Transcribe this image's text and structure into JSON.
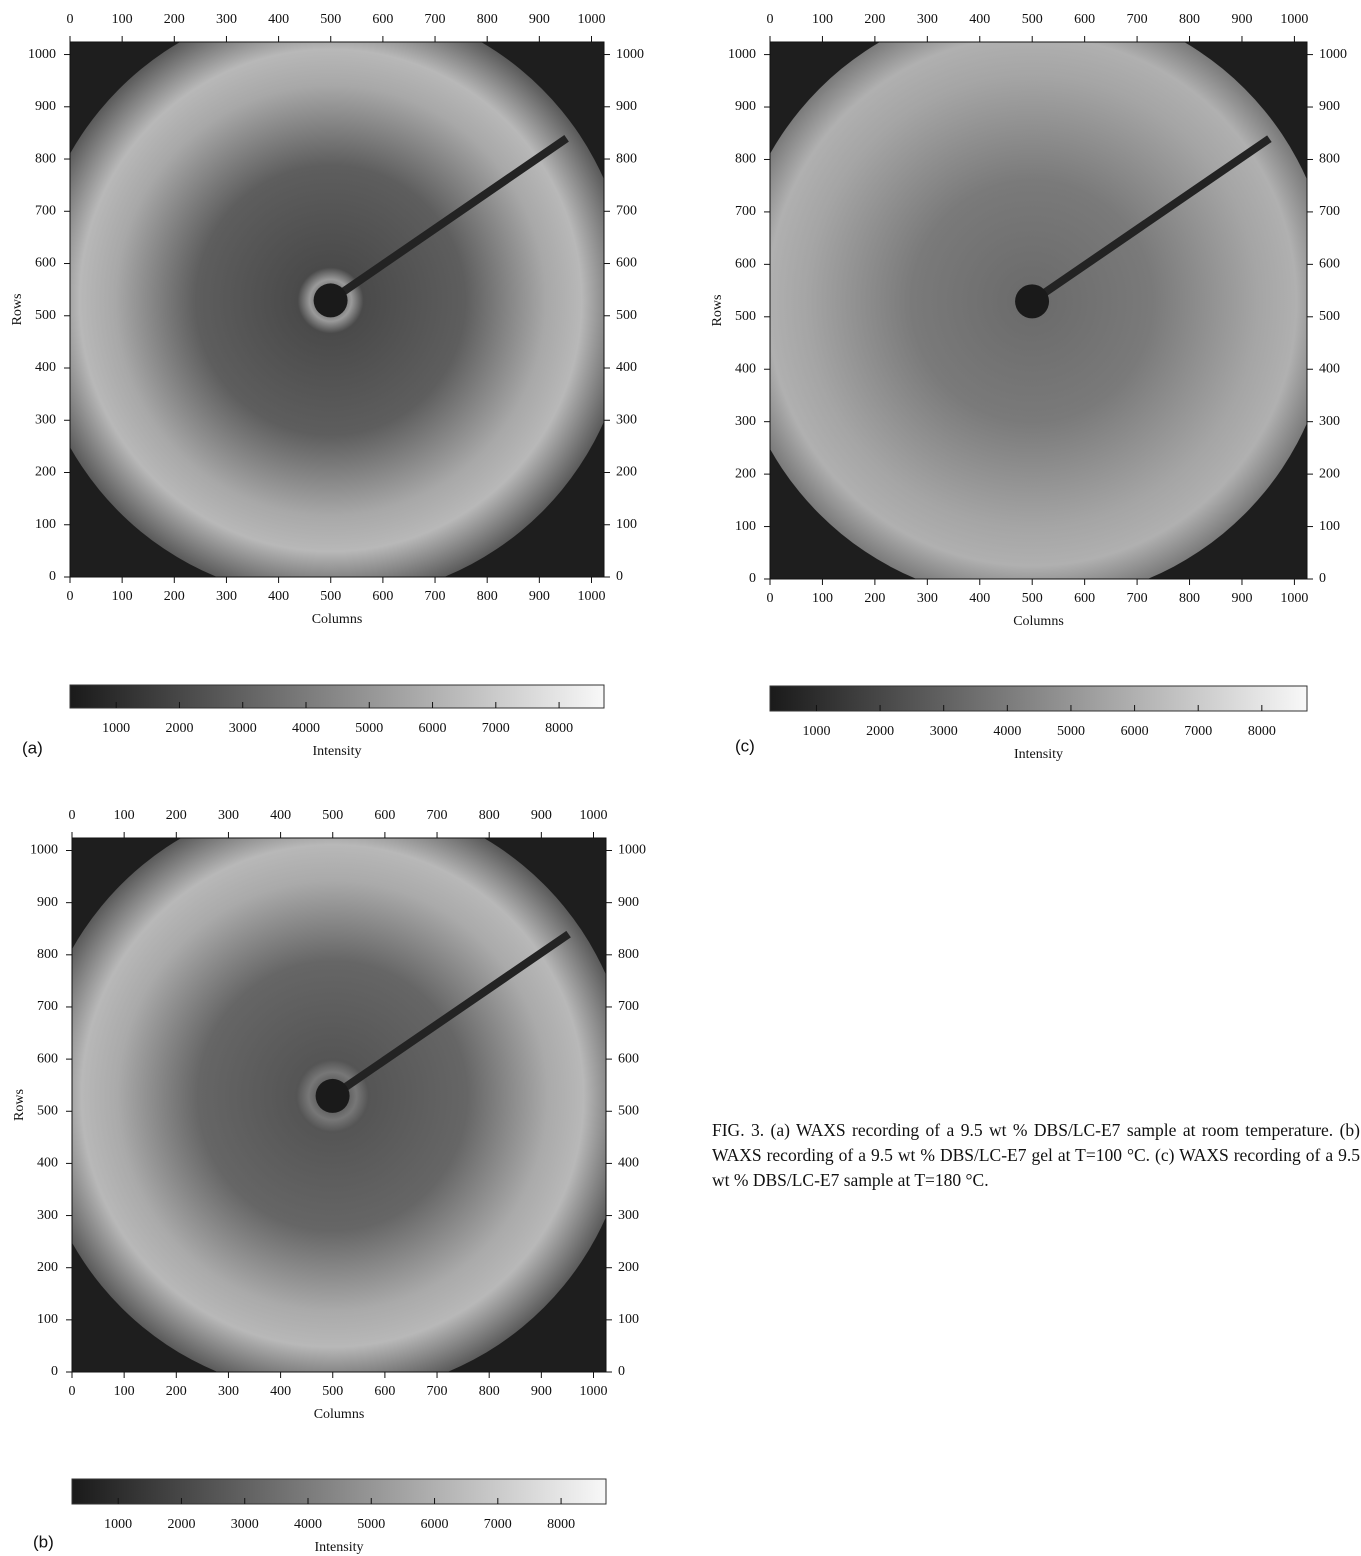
{
  "chart_data": [
    {
      "type": "heatmap",
      "label": "(a)",
      "xlabel": "Columns",
      "ylabel": "Rows",
      "xlim": [
        0,
        1024
      ],
      "ylim": [
        0,
        1024
      ],
      "xticks": [
        0,
        100,
        200,
        300,
        400,
        500,
        600,
        700,
        800,
        900,
        1000
      ],
      "yticks": [
        0,
        100,
        200,
        300,
        400,
        500,
        600,
        700,
        800,
        900,
        1000
      ],
      "colorbar": {
        "label": "Intensity",
        "lim": [
          270,
          8710
        ],
        "ticks": [
          1000,
          2000,
          3000,
          4000,
          5000,
          6000,
          7000,
          8000
        ]
      }
    },
    {
      "type": "heatmap",
      "label": "(b)",
      "xlabel": "Columns",
      "ylabel": "Rows",
      "xlim": [
        0,
        1024
      ],
      "ylim": [
        0,
        1024
      ],
      "xticks": [
        0,
        100,
        200,
        300,
        400,
        500,
        600,
        700,
        800,
        900,
        1000
      ],
      "yticks": [
        0,
        100,
        200,
        300,
        400,
        500,
        600,
        700,
        800,
        900,
        1000
      ],
      "colorbar": {
        "label": "Intensity",
        "lim": [
          270,
          8710
        ],
        "ticks": [
          1000,
          2000,
          3000,
          4000,
          5000,
          6000,
          7000,
          8000
        ]
      }
    },
    {
      "type": "heatmap",
      "label": "(c)",
      "xlabel": "Columns",
      "ylabel": "Rows",
      "xlim": [
        0,
        1024
      ],
      "ylim": [
        0,
        1024
      ],
      "xticks": [
        0,
        100,
        200,
        300,
        400,
        500,
        600,
        700,
        800,
        900,
        1000
      ],
      "yticks": [
        0,
        100,
        200,
        300,
        400,
        500,
        600,
        700,
        800,
        900,
        1000
      ],
      "colorbar": {
        "label": "Intensity",
        "lim": [
          270,
          8710
        ],
        "ticks": [
          1000,
          2000,
          3000,
          4000,
          5000,
          6000,
          7000,
          8000
        ]
      }
    }
  ],
  "caption": "FIG. 3. (a) WAXS recording of a 9.5 wt % DBS/LC-E7 sample at room temperature. (b) WAXS recording of a 9.5 wt % DBS/LC-E7 gel at T=100 °C. (c) WAXS recording of a 9.5 wt % DBS/LC-E7 sample at T=180 °C."
}
